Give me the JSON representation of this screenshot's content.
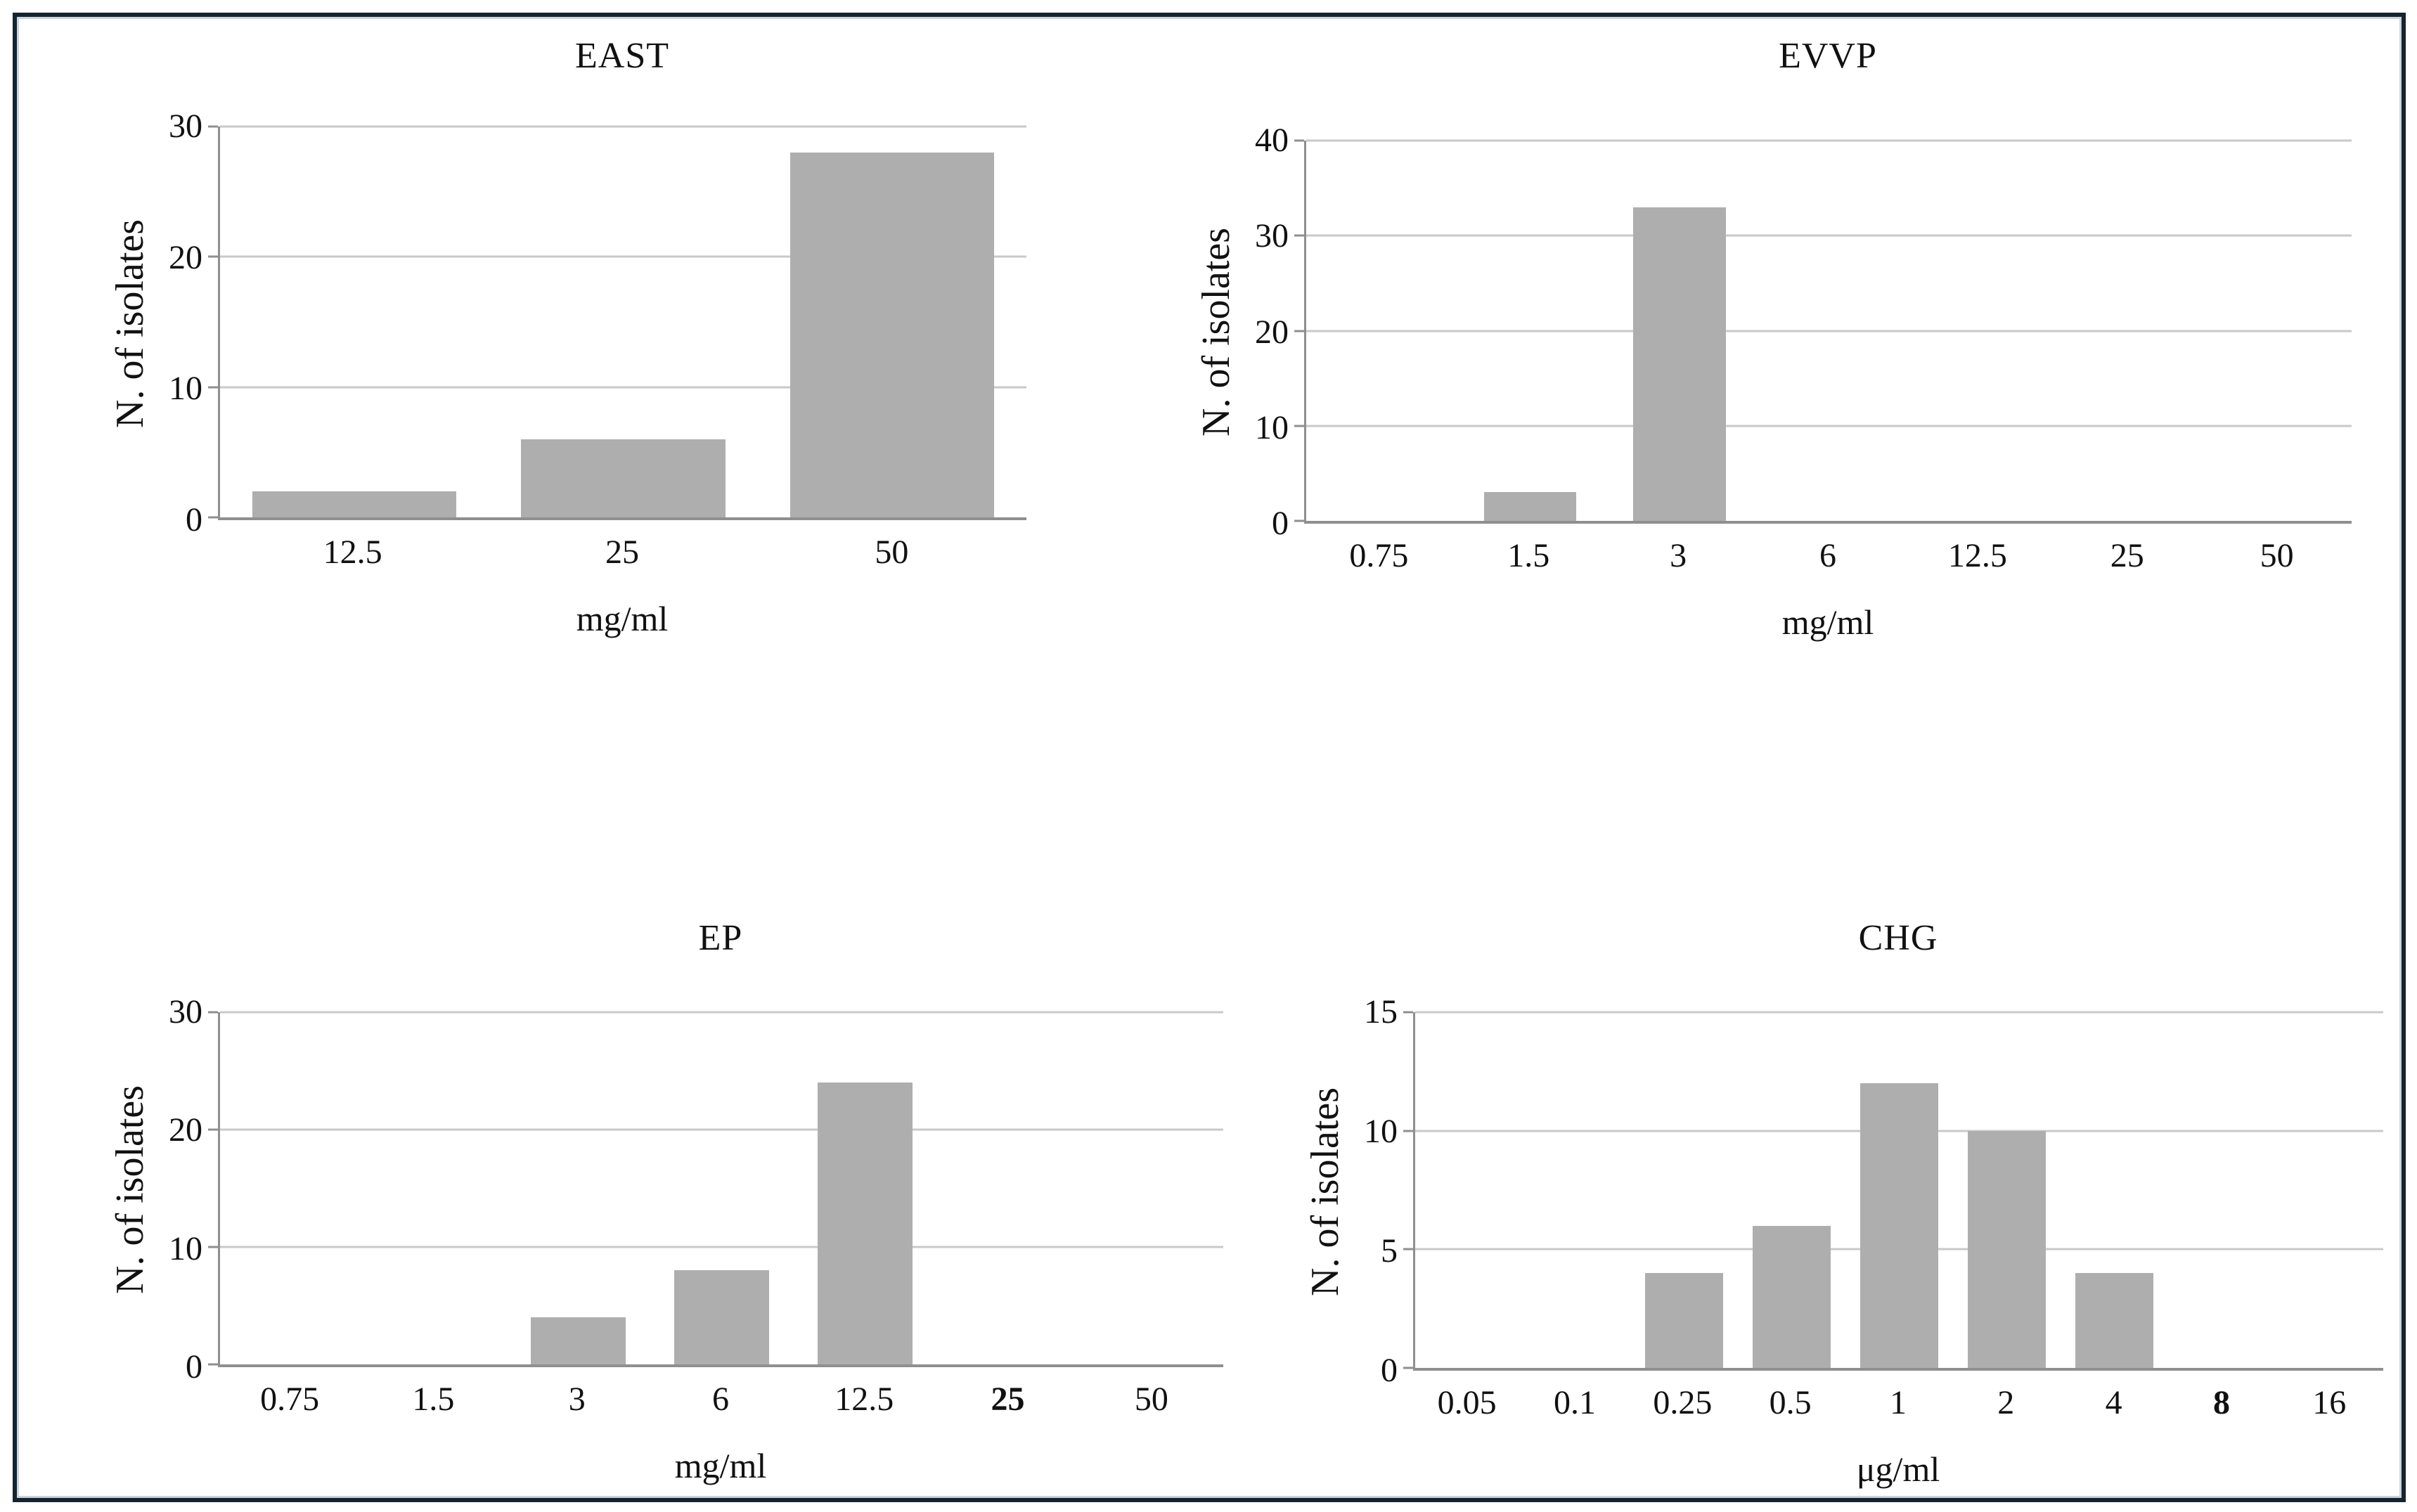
{
  "figure": {
    "background": "#ffffff",
    "frame_color": "#15242f",
    "bar_color": "#aeaeae",
    "gridline_color": "#c9c9c9",
    "axis_color": "#8f8f8f",
    "text_color": "#111111"
  },
  "chart_data": [
    {
      "type": "bar",
      "title": "EAST",
      "ylabel": "N. of isolates",
      "xlabel": "mg/ml",
      "categories": [
        "12.5",
        "25",
        "50"
      ],
      "values": [
        2,
        6,
        28
      ],
      "ylim": [
        0,
        30
      ],
      "yticks": [
        0,
        10,
        20,
        30
      ],
      "bold_categories": [],
      "grid": true,
      "legend": "none"
    },
    {
      "type": "bar",
      "title": "EVVP",
      "ylabel": "N. of isolates",
      "xlabel": "mg/ml",
      "categories": [
        "0.75",
        "1.5",
        "3",
        "6",
        "12.5",
        "25",
        "50"
      ],
      "values": [
        0,
        3,
        33,
        0,
        0,
        0,
        0
      ],
      "ylim": [
        0,
        40
      ],
      "yticks": [
        0,
        10,
        20,
        30,
        40
      ],
      "bold_categories": [],
      "grid": true,
      "legend": "none"
    },
    {
      "type": "bar",
      "title": "EP",
      "ylabel": "N. of isolates",
      "xlabel": "mg/ml",
      "categories": [
        "0.75",
        "1.5",
        "3",
        "6",
        "12.5",
        "25",
        "50"
      ],
      "values": [
        0,
        0,
        4,
        8,
        24,
        0,
        0
      ],
      "ylim": [
        0,
        30
      ],
      "yticks": [
        0,
        10,
        20,
        30
      ],
      "bold_categories": [
        "25"
      ],
      "grid": true,
      "legend": "none"
    },
    {
      "type": "bar",
      "title": "CHG",
      "ylabel": "N. of isolates",
      "xlabel": "μg/ml",
      "categories": [
        "0.05",
        "0.1",
        "0.25",
        "0.5",
        "1",
        "2",
        "4",
        "8",
        "16"
      ],
      "values": [
        0,
        0,
        4,
        6,
        12,
        10,
        4,
        0,
        0
      ],
      "ylim": [
        0,
        15
      ],
      "yticks": [
        0,
        5,
        10,
        15
      ],
      "bold_categories": [
        "8"
      ],
      "grid": true,
      "legend": "none"
    }
  ]
}
